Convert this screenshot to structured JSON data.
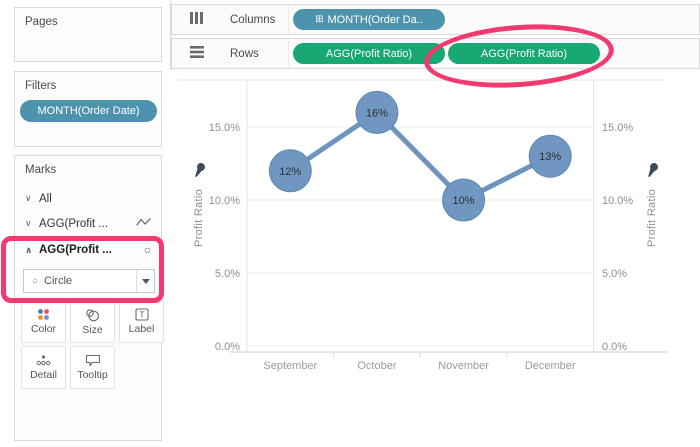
{
  "annotation": {
    "color": "#F23A70",
    "shape_note": "hand-drawn highlight"
  },
  "icons": {
    "chevron_down": "∨",
    "chevron_up": "∧",
    "circle_outline": "○",
    "dropdown_caret": "▼",
    "plus_box": "⊞"
  },
  "colors": {
    "dimension_pill_blue": "#4E93AE",
    "measure_pill_green": "#17A874",
    "mark_blue": "#7097C1",
    "line_blue": "#6E94BE"
  },
  "pages": {
    "title": "Pages"
  },
  "filters": {
    "title": "Filters",
    "pills": [
      {
        "label": "MONTH(Order Date)",
        "color": "#4E93AE"
      }
    ]
  },
  "marks": {
    "title": "Marks",
    "rows": [
      {
        "label": "All"
      },
      {
        "label": "AGG(Profit ...",
        "mark_icon": "line"
      },
      {
        "label": "AGG(Profit ...",
        "mark_icon": "circle"
      }
    ],
    "mark_type_dropdown": {
      "value": "Circle"
    },
    "buttons": [
      {
        "label": "Color"
      },
      {
        "label": "Size"
      },
      {
        "label": "Label"
      },
      {
        "label": "Detail"
      },
      {
        "label": "Tooltip"
      }
    ]
  },
  "shelves": {
    "columns": {
      "label": "Columns",
      "pills": [
        {
          "label": "MONTH(Order Da..",
          "color": "#4E93AE"
        }
      ]
    },
    "rows": {
      "label": "Rows",
      "pills": [
        {
          "label": "AGG(Profit Ratio)",
          "color": "#17A874"
        },
        {
          "label": "AGG(Profit Ratio)",
          "color": "#17A874",
          "annotated": true
        }
      ]
    }
  },
  "chart_data": {
    "type": "line",
    "mark": "circle",
    "categories": [
      "September",
      "October",
      "November",
      "December"
    ],
    "series": [
      {
        "name": "AGG(Profit Ratio)",
        "values": [
          12,
          16,
          10,
          13
        ],
        "point_labels": [
          "12%",
          "16%",
          "10%",
          "13%"
        ],
        "color": "#6E94BE",
        "marker_color": "#7097C1",
        "marker_stroke": "#5E86B2"
      }
    ],
    "ylabel_left": "Profit Ratio",
    "ylabel_right": "Profit Ratio",
    "yticks": [
      0,
      5,
      10,
      15
    ],
    "ytick_labels": [
      "0.0%",
      "5.0%",
      "10.0%",
      "15.0%"
    ],
    "ylim": [
      0,
      18.6
    ],
    "grid": true,
    "dual_axis": true,
    "legend": "none"
  }
}
